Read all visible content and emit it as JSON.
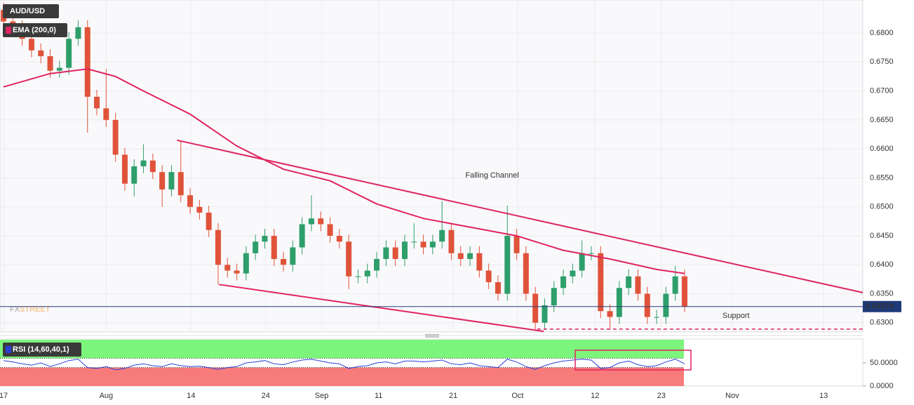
{
  "chart_data": [
    {
      "type": "candlestick",
      "symbol": "AUD/USD",
      "indicator": "EMA (200,0)",
      "open": [
        0.684,
        0.682,
        0.681,
        0.679,
        0.677,
        0.676,
        0.6735,
        0.674,
        0.679,
        0.681,
        0.669,
        0.667,
        0.665,
        0.659,
        0.654,
        0.657,
        0.658,
        0.656,
        0.653,
        0.656,
        0.652,
        0.65,
        0.649,
        0.646,
        0.64,
        0.639,
        0.6385,
        0.642,
        0.644,
        0.645,
        0.641,
        0.64,
        0.643,
        0.647,
        0.648,
        0.647,
        0.645,
        0.644,
        0.638,
        0.638,
        0.639,
        0.641,
        0.643,
        0.641,
        0.644,
        0.644,
        0.643,
        0.644,
        0.646,
        0.642,
        0.641,
        0.642,
        0.639,
        0.637,
        0.635,
        0.645,
        0.642,
        0.635,
        0.63,
        0.633,
        0.636,
        0.638,
        0.639,
        0.642,
        0.642,
        0.632,
        0.631,
        0.636,
        0.638,
        0.635,
        0.631,
        0.631,
        0.635,
        0.638
      ],
      "high": [
        0.6852,
        0.6832,
        0.6822,
        0.6802,
        0.6782,
        0.6772,
        0.6752,
        0.6802,
        0.6822,
        0.6822,
        0.6702,
        0.6738,
        0.6662,
        0.6602,
        0.6582,
        0.6608,
        0.6592,
        0.6572,
        0.6572,
        0.6615,
        0.6532,
        0.6512,
        0.6502,
        0.6472,
        0.6412,
        0.6402,
        0.6432,
        0.6452,
        0.6462,
        0.6462,
        0.6422,
        0.6442,
        0.6482,
        0.652,
        0.6492,
        0.6482,
        0.6462,
        0.6452,
        0.6392,
        0.6402,
        0.6422,
        0.6442,
        0.6442,
        0.6452,
        0.6472,
        0.6452,
        0.6452,
        0.651,
        0.6472,
        0.6432,
        0.6432,
        0.6432,
        0.6402,
        0.6382,
        0.6502,
        0.6462,
        0.6432,
        0.6362,
        0.6342,
        0.6372,
        0.6392,
        0.6402,
        0.6442,
        0.6432,
        0.6432,
        0.6332,
        0.6372,
        0.6392,
        0.6392,
        0.6362,
        0.6322,
        0.6362,
        0.6398,
        0.6392
      ],
      "low": [
        0.6808,
        0.6798,
        0.6778,
        0.6758,
        0.6748,
        0.6723,
        0.6723,
        0.6728,
        0.6778,
        0.6628,
        0.6658,
        0.6638,
        0.6578,
        0.6528,
        0.6518,
        0.6558,
        0.6548,
        0.65,
        0.6518,
        0.6508,
        0.6488,
        0.6478,
        0.6448,
        0.6366,
        0.6378,
        0.6373,
        0.6373,
        0.6408,
        0.6428,
        0.6398,
        0.6388,
        0.6388,
        0.6418,
        0.6458,
        0.6458,
        0.6438,
        0.6428,
        0.6358,
        0.6368,
        0.6368,
        0.6378,
        0.6398,
        0.6398,
        0.6398,
        0.6428,
        0.6418,
        0.6418,
        0.6428,
        0.6408,
        0.6398,
        0.6398,
        0.6378,
        0.6358,
        0.6338,
        0.6338,
        0.6408,
        0.6338,
        0.6288,
        0.6288,
        0.6318,
        0.6348,
        0.6368,
        0.6378,
        0.6408,
        0.6308,
        0.6288,
        0.6298,
        0.6348,
        0.6338,
        0.6298,
        0.6298,
        0.6298,
        0.6338,
        0.6318
      ],
      "close": [
        0.682,
        0.681,
        0.679,
        0.677,
        0.676,
        0.6735,
        0.674,
        0.679,
        0.681,
        0.669,
        0.667,
        0.665,
        0.659,
        0.654,
        0.657,
        0.658,
        0.656,
        0.653,
        0.656,
        0.652,
        0.65,
        0.649,
        0.646,
        0.64,
        0.639,
        0.6385,
        0.642,
        0.644,
        0.645,
        0.641,
        0.64,
        0.643,
        0.647,
        0.648,
        0.647,
        0.645,
        0.644,
        0.638,
        0.638,
        0.639,
        0.641,
        0.643,
        0.641,
        0.644,
        0.644,
        0.643,
        0.644,
        0.646,
        0.642,
        0.641,
        0.642,
        0.639,
        0.637,
        0.635,
        0.645,
        0.642,
        0.635,
        0.63,
        0.633,
        0.636,
        0.638,
        0.639,
        0.642,
        0.642,
        0.632,
        0.631,
        0.636,
        0.638,
        0.635,
        0.631,
        0.631,
        0.635,
        0.638,
        0.6328
      ],
      "up_color": "#2e9e6b",
      "down_color": "#e0533a",
      "ema": {
        "color": "#e0245e",
        "x": [
          0,
          5,
          9,
          12,
          15,
          20,
          25,
          30,
          35,
          40,
          45,
          50,
          55,
          60,
          65,
          70,
          73
        ],
        "values": [
          0.6707,
          0.673,
          0.6738,
          0.6725,
          0.67,
          0.666,
          0.6605,
          0.6565,
          0.6545,
          0.6505,
          0.648,
          0.6465,
          0.645,
          0.6425,
          0.641,
          0.6392,
          0.6385
        ]
      },
      "last_price": 0.63279,
      "trendlines": [
        {
          "x": [
            18.6,
            92.1
          ],
          "y": [
            0.6615,
            0.6352
          ]
        },
        {
          "x": [
            23.1,
            57.9
          ],
          "y": [
            0.6366,
            0.6285
          ]
        }
      ],
      "support": {
        "label": "Support",
        "value": 0.6289,
        "x": [
          57.2,
          92.1
        ]
      },
      "annotation": {
        "text": "Falling Channel",
        "x": 49.5,
        "y": 0.6554
      },
      "watermark": [
        "FX",
        "STREET"
      ],
      "xlim": [
        -0.38,
        92.1
      ],
      "ylim": [
        0.6284,
        0.6857
      ],
      "yticks": [
        {
          "value": 0.63,
          "label": "0.6300"
        },
        {
          "value": 0.635,
          "label": "0.6350"
        },
        {
          "value": 0.64,
          "label": "0.6400"
        },
        {
          "value": 0.645,
          "label": "0.6450"
        },
        {
          "value": 0.65,
          "label": "0.6500"
        },
        {
          "value": 0.655,
          "label": "0.6550"
        },
        {
          "value": 0.66,
          "label": "0.6600"
        },
        {
          "value": 0.665,
          "label": "0.6650"
        },
        {
          "value": 0.67,
          "label": "0.6700"
        },
        {
          "value": 0.675,
          "label": "0.6750"
        },
        {
          "value": 0.68,
          "label": "0.6800"
        }
      ],
      "xticks": [
        {
          "value": 0,
          "label": "17"
        },
        {
          "value": 11,
          "label": "Aug"
        },
        {
          "value": 20.1,
          "label": "14"
        },
        {
          "value": 28.1,
          "label": "24"
        },
        {
          "value": 34.1,
          "label": "Sep"
        },
        {
          "value": 40.2,
          "label": "11"
        },
        {
          "value": 48.2,
          "label": "21"
        },
        {
          "value": 55.1,
          "label": "Oct"
        },
        {
          "value": 63.4,
          "label": "12"
        },
        {
          "value": 70.5,
          "label": "23"
        },
        {
          "value": 78.1,
          "label": "Nov"
        },
        {
          "value": 87.9,
          "label": "13"
        }
      ],
      "grid": true
    },
    {
      "type": "line",
      "title": "RSI (14,60,40,1)",
      "series": [
        {
          "name": "RSI",
          "color": "#2b3fd6",
          "values": [
            55,
            52,
            48,
            45,
            50,
            42,
            48,
            55,
            58,
            40,
            38,
            42,
            35,
            38,
            45,
            48,
            44,
            42,
            48,
            44,
            42,
            43,
            40,
            36,
            40,
            42,
            50,
            52,
            55,
            48,
            46,
            52,
            56,
            58,
            54,
            50,
            48,
            38,
            42,
            44,
            50,
            52,
            48,
            54,
            54,
            52,
            54,
            56,
            48,
            46,
            50,
            44,
            42,
            40,
            58,
            52,
            42,
            36,
            44,
            50,
            54,
            56,
            58,
            56,
            38,
            40,
            50,
            54,
            46,
            42,
            44,
            52,
            58,
            48
          ]
        }
      ],
      "bands": {
        "upper": 60,
        "lower": 40,
        "upper_color": "#7cf57c",
        "lower_color": "#f77b7b"
      },
      "xlim": [
        -0.38,
        92.1
      ],
      "ylim": [
        0,
        100
      ],
      "yticks": [
        {
          "value": 0,
          "label": "0.0000"
        },
        {
          "value": 50,
          "label": "50.0000"
        }
      ]
    }
  ]
}
